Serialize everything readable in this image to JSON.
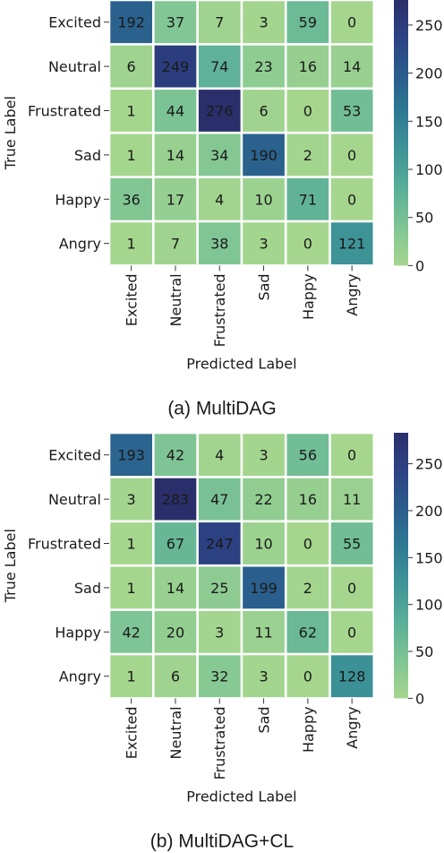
{
  "chart_data": [
    {
      "type": "heatmap",
      "caption": "(a) MultiDAG",
      "xlabel": "Predicted Label",
      "ylabel": "True Label",
      "x_categories": [
        "Excited",
        "Neutral",
        "Frustrated",
        "Sad",
        "Happy",
        "Angry"
      ],
      "y_categories": [
        "Excited",
        "Neutral",
        "Frustrated",
        "Sad",
        "Happy",
        "Angry"
      ],
      "values": [
        [
          192,
          37,
          7,
          3,
          59,
          0
        ],
        [
          6,
          249,
          74,
          23,
          16,
          14
        ],
        [
          1,
          44,
          276,
          6,
          0,
          53
        ],
        [
          1,
          14,
          34,
          190,
          2,
          0
        ],
        [
          36,
          17,
          4,
          10,
          71,
          0
        ],
        [
          1,
          7,
          38,
          3,
          0,
          121
        ]
      ],
      "colorbar": {
        "min": 0,
        "max": 276,
        "ticks": [
          0,
          50,
          100,
          150,
          200,
          250
        ]
      },
      "colormap": [
        "#a6d68e",
        "#7fc594",
        "#5aaf98",
        "#3f9597",
        "#2f7a93",
        "#2a5d8c",
        "#2c4384",
        "#2a2f6b"
      ]
    },
    {
      "type": "heatmap",
      "caption": "(b) MultiDAG+CL",
      "xlabel": "Predicted Label",
      "ylabel": "True Label",
      "x_categories": [
        "Excited",
        "Neutral",
        "Frustrated",
        "Sad",
        "Happy",
        "Angry"
      ],
      "y_categories": [
        "Excited",
        "Neutral",
        "Frustrated",
        "Sad",
        "Happy",
        "Angry"
      ],
      "values": [
        [
          193,
          42,
          4,
          3,
          56,
          0
        ],
        [
          3,
          283,
          47,
          22,
          16,
          11
        ],
        [
          1,
          67,
          247,
          10,
          0,
          55
        ],
        [
          1,
          14,
          25,
          199,
          2,
          0
        ],
        [
          42,
          20,
          3,
          11,
          62,
          0
        ],
        [
          1,
          6,
          32,
          3,
          0,
          128
        ]
      ],
      "colorbar": {
        "min": 0,
        "max": 283,
        "ticks": [
          0,
          50,
          100,
          150,
          200,
          250
        ]
      },
      "colormap": [
        "#a6d68e",
        "#7fc594",
        "#5aaf98",
        "#3f9597",
        "#2f7a93",
        "#2a5d8c",
        "#2c4384",
        "#2a2f6b"
      ]
    }
  ]
}
